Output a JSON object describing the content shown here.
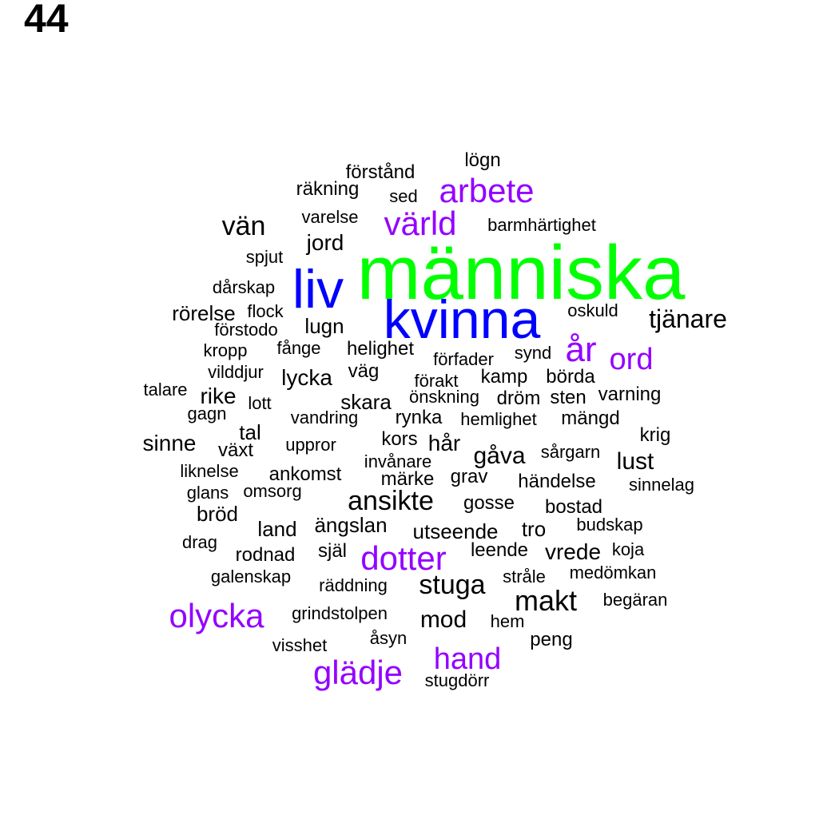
{
  "page_number": "44",
  "colors": {
    "tier1": "#00ff00",
    "tier2": "#0000ff",
    "tier3": "#9400ff",
    "tier4": "#000000"
  },
  "words": [
    {
      "text": "människa",
      "tier": "tier1"
    },
    {
      "text": "liv",
      "tier": "tier2"
    },
    {
      "text": "kvinna",
      "tier": "tier2"
    },
    {
      "text": "arbete",
      "tier": "tier3"
    },
    {
      "text": "värld",
      "tier": "tier3"
    },
    {
      "text": "år",
      "tier": "tier3"
    },
    {
      "text": "ord",
      "tier": "tier3"
    },
    {
      "text": "dotter",
      "tier": "tier3"
    },
    {
      "text": "olycka",
      "tier": "tier3"
    },
    {
      "text": "glädje",
      "tier": "tier3"
    },
    {
      "text": "hand",
      "tier": "tier3"
    },
    {
      "text": "lögn",
      "tier": "tier4"
    },
    {
      "text": "förstånd",
      "tier": "tier4"
    },
    {
      "text": "räkning",
      "tier": "tier4"
    },
    {
      "text": "sed",
      "tier": "tier4"
    },
    {
      "text": "varelse",
      "tier": "tier4"
    },
    {
      "text": "barmhärtighet",
      "tier": "tier4"
    },
    {
      "text": "vän",
      "tier": "tier4"
    },
    {
      "text": "jord",
      "tier": "tier4"
    },
    {
      "text": "spjut",
      "tier": "tier4"
    },
    {
      "text": "dårskap",
      "tier": "tier4"
    },
    {
      "text": "rörelse",
      "tier": "tier4"
    },
    {
      "text": "flock",
      "tier": "tier4"
    },
    {
      "text": "förstodo",
      "tier": "tier4"
    },
    {
      "text": "lugn",
      "tier": "tier4"
    },
    {
      "text": "oskuld",
      "tier": "tier4"
    },
    {
      "text": "tjänare",
      "tier": "tier4"
    },
    {
      "text": "kropp",
      "tier": "tier4"
    },
    {
      "text": "fånge",
      "tier": "tier4"
    },
    {
      "text": "helighet",
      "tier": "tier4"
    },
    {
      "text": "förfader",
      "tier": "tier4"
    },
    {
      "text": "synd",
      "tier": "tier4"
    },
    {
      "text": "vilddjur",
      "tier": "tier4"
    },
    {
      "text": "lycka",
      "tier": "tier4"
    },
    {
      "text": "väg",
      "tier": "tier4"
    },
    {
      "text": "förakt",
      "tier": "tier4"
    },
    {
      "text": "kamp",
      "tier": "tier4"
    },
    {
      "text": "börda",
      "tier": "tier4"
    },
    {
      "text": "talare",
      "tier": "tier4"
    },
    {
      "text": "rike",
      "tier": "tier4"
    },
    {
      "text": "lott",
      "tier": "tier4"
    },
    {
      "text": "skara",
      "tier": "tier4"
    },
    {
      "text": "önskning",
      "tier": "tier4"
    },
    {
      "text": "dröm",
      "tier": "tier4"
    },
    {
      "text": "sten",
      "tier": "tier4"
    },
    {
      "text": "varning",
      "tier": "tier4"
    },
    {
      "text": "gagn",
      "tier": "tier4"
    },
    {
      "text": "vandring",
      "tier": "tier4"
    },
    {
      "text": "rynka",
      "tier": "tier4"
    },
    {
      "text": "hemlighet",
      "tier": "tier4"
    },
    {
      "text": "mängd",
      "tier": "tier4"
    },
    {
      "text": "tal",
      "tier": "tier4"
    },
    {
      "text": "kors",
      "tier": "tier4"
    },
    {
      "text": "hår",
      "tier": "tier4"
    },
    {
      "text": "krig",
      "tier": "tier4"
    },
    {
      "text": "sinne",
      "tier": "tier4"
    },
    {
      "text": "växt",
      "tier": "tier4"
    },
    {
      "text": "uppror",
      "tier": "tier4"
    },
    {
      "text": "gåva",
      "tier": "tier4"
    },
    {
      "text": "sårgarn",
      "tier": "tier4"
    },
    {
      "text": "lust",
      "tier": "tier4"
    },
    {
      "text": "invånare",
      "tier": "tier4"
    },
    {
      "text": "liknelse",
      "tier": "tier4"
    },
    {
      "text": "ankomst",
      "tier": "tier4"
    },
    {
      "text": "märke",
      "tier": "tier4"
    },
    {
      "text": "grav",
      "tier": "tier4"
    },
    {
      "text": "händelse",
      "tier": "tier4"
    },
    {
      "text": "sinnelag",
      "tier": "tier4"
    },
    {
      "text": "glans",
      "tier": "tier4"
    },
    {
      "text": "omsorg",
      "tier": "tier4"
    },
    {
      "text": "ansikte",
      "tier": "tier4"
    },
    {
      "text": "gosse",
      "tier": "tier4"
    },
    {
      "text": "bostad",
      "tier": "tier4"
    },
    {
      "text": "bröd",
      "tier": "tier4"
    },
    {
      "text": "land",
      "tier": "tier4"
    },
    {
      "text": "ängslan",
      "tier": "tier4"
    },
    {
      "text": "utseende",
      "tier": "tier4"
    },
    {
      "text": "tro",
      "tier": "tier4"
    },
    {
      "text": "budskap",
      "tier": "tier4"
    },
    {
      "text": "drag",
      "tier": "tier4"
    },
    {
      "text": "rodnad",
      "tier": "tier4"
    },
    {
      "text": "själ",
      "tier": "tier4"
    },
    {
      "text": "leende",
      "tier": "tier4"
    },
    {
      "text": "vrede",
      "tier": "tier4"
    },
    {
      "text": "koja",
      "tier": "tier4"
    },
    {
      "text": "galenskap",
      "tier": "tier4"
    },
    {
      "text": "räddning",
      "tier": "tier4"
    },
    {
      "text": "stuga",
      "tier": "tier4"
    },
    {
      "text": "stråle",
      "tier": "tier4"
    },
    {
      "text": "medömkan",
      "tier": "tier4"
    },
    {
      "text": "makt",
      "tier": "tier4"
    },
    {
      "text": "begäran",
      "tier": "tier4"
    },
    {
      "text": "grindstolpen",
      "tier": "tier4"
    },
    {
      "text": "mod",
      "tier": "tier4"
    },
    {
      "text": "hem",
      "tier": "tier4"
    },
    {
      "text": "åsyn",
      "tier": "tier4"
    },
    {
      "text": "peng",
      "tier": "tier4"
    },
    {
      "text": "visshet",
      "tier": "tier4"
    },
    {
      "text": "stugdörr",
      "tier": "tier4"
    }
  ]
}
